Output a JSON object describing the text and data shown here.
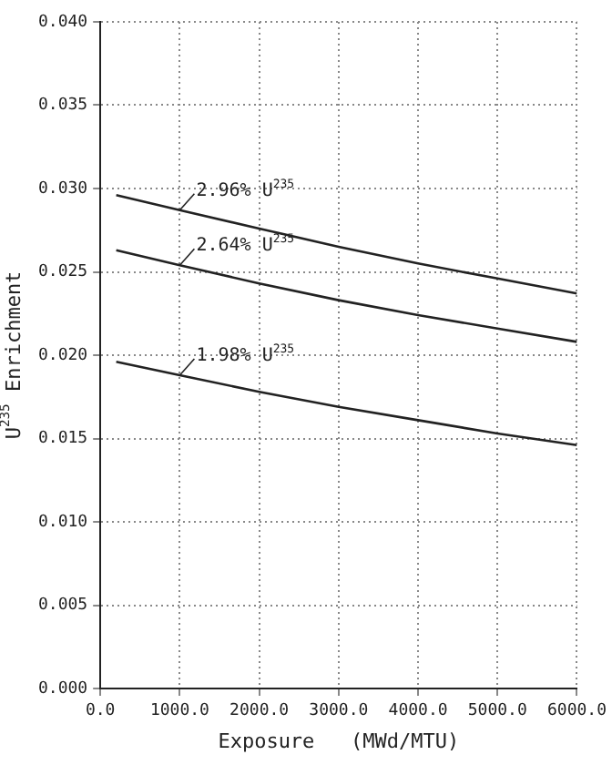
{
  "chart_data": {
    "type": "line",
    "xlabel": "Exposure   (MWd/MTU)",
    "ylabel": "U$^{235}$ Enrichment",
    "x": [
      200,
      1000,
      2000,
      3000,
      4000,
      5000,
      6000
    ],
    "series": [
      {
        "color": "#222222",
        "values": [
          0.0296,
          0.0287,
          0.0276,
          0.0265,
          0.0255,
          0.0246,
          0.0237
        ]
      },
      {
        "color": "#222222",
        "values": [
          0.0263,
          0.0254,
          0.0243,
          0.0233,
          0.0224,
          0.0216,
          0.0208
        ]
      },
      {
        "color": "#222222",
        "values": [
          0.0196,
          0.0188,
          0.0178,
          0.0169,
          0.0161,
          0.0153,
          0.0146
        ]
      }
    ],
    "annotations": [
      "2.96% U$^{235}$",
      "2.64% U$^{235}$",
      "1.98% U$^{235}$"
    ],
    "xlim": [
      0,
      6000
    ],
    "xticks": [
      {
        "value": 0,
        "label": "0.0"
      },
      {
        "value": 1000,
        "label": "1000.0"
      },
      {
        "value": 2000,
        "label": "2000.0"
      },
      {
        "value": 3000,
        "label": "3000.0"
      },
      {
        "value": 4000,
        "label": "4000.0"
      },
      {
        "value": 5000,
        "label": "5000.0"
      },
      {
        "value": 6000,
        "label": "6000.0"
      }
    ],
    "ylim": [
      0,
      0.04
    ],
    "yticks": [
      {
        "value": 0,
        "label": "0.000"
      },
      {
        "value": 0.005,
        "label": "0.005"
      },
      {
        "value": 0.01,
        "label": "0.010"
      },
      {
        "value": 0.015,
        "label": "0.015"
      },
      {
        "value": 0.02,
        "label": "0.020"
      },
      {
        "value": 0.025,
        "label": "0.025"
      },
      {
        "value": 0.03,
        "label": "0.030"
      },
      {
        "value": 0.035,
        "label": "0.035"
      },
      {
        "value": 0.04,
        "label": "0.040"
      }
    ],
    "grid": true,
    "legend": false,
    "marker": "none",
    "line_style": "solid"
  }
}
